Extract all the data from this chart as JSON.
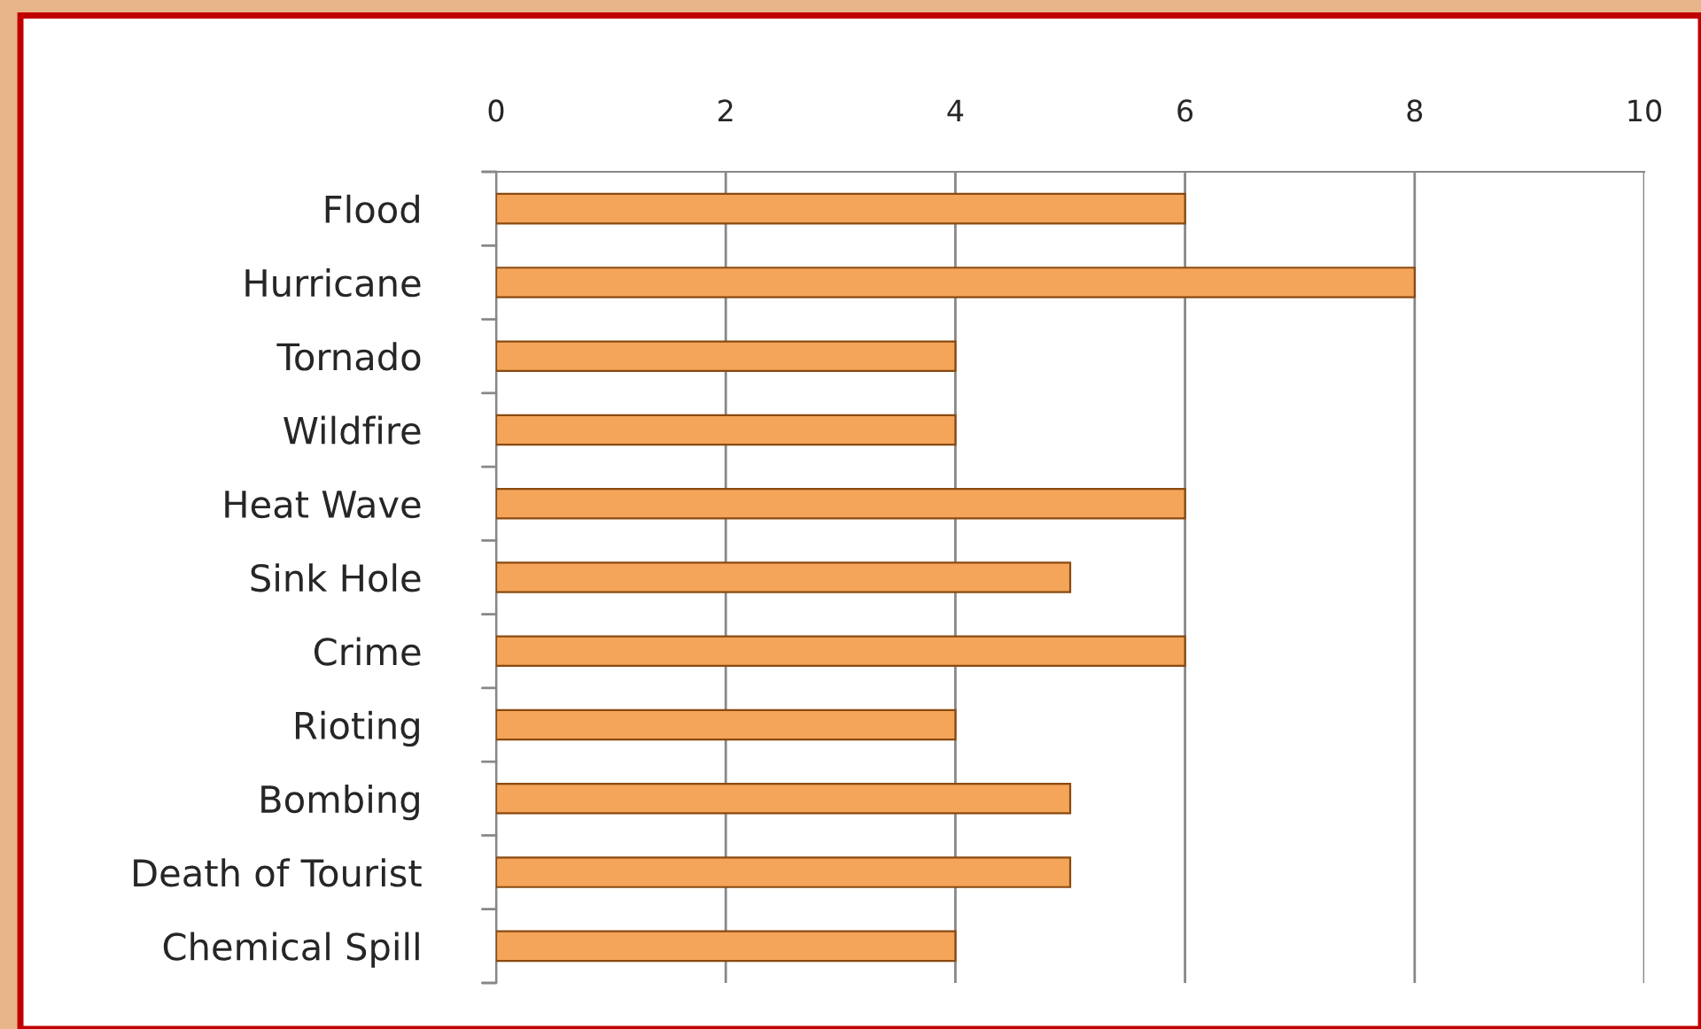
{
  "chart_data": {
    "type": "bar",
    "orientation": "horizontal",
    "categories": [
      "Flood",
      "Hurricane",
      "Tornado",
      "Wildfire",
      "Heat Wave",
      "Sink Hole",
      "Crime",
      "Rioting",
      "Bombing",
      "Death of Tourist",
      "Chemical Spill"
    ],
    "values": [
      6,
      8,
      4,
      4,
      6,
      5,
      6,
      4,
      5,
      5,
      4
    ],
    "color": "#f4a55a",
    "xlim": [
      0,
      10
    ],
    "xticks": [
      0,
      2,
      4,
      6,
      8,
      10
    ],
    "grid": "x",
    "legend": false
  }
}
